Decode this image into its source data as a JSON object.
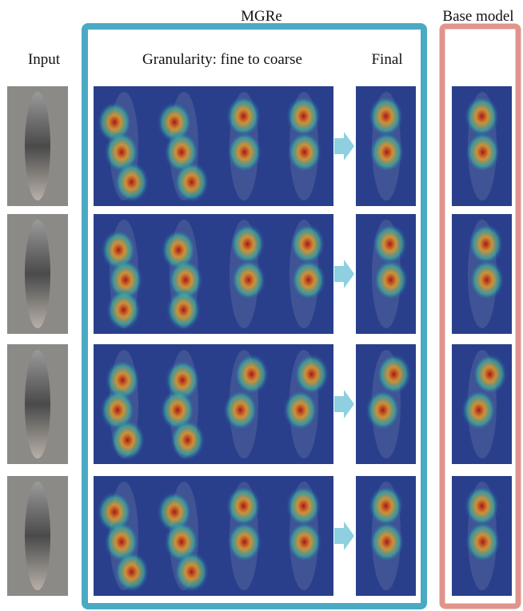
{
  "header": {
    "group_title": "MGRe",
    "side_title": "Base model"
  },
  "columns": {
    "input": "Input",
    "granularity": "Granularity:  fine to coarse",
    "final": "Final"
  }
}
